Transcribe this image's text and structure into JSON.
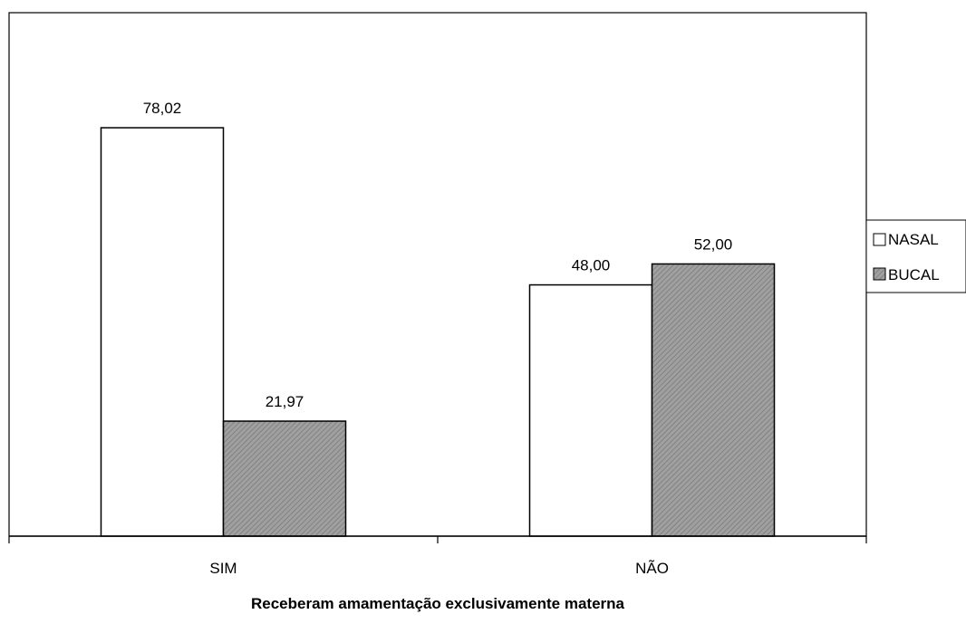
{
  "chart_data": {
    "type": "bar",
    "title": "",
    "xlabel": "Receberam amamentação exclusivamente materna",
    "ylabel": "",
    "categories": [
      "SIM",
      "NÃO"
    ],
    "series": [
      {
        "name": "NASAL",
        "values": [
          78.02,
          48.0
        ],
        "labels": [
          "78,02",
          "48,00"
        ],
        "fill": "#ffffff",
        "pattern": "none"
      },
      {
        "name": "BUCAL",
        "values": [
          21.97,
          52.0
        ],
        "labels": [
          "21,97",
          "52,00"
        ],
        "fill": "#999999",
        "pattern": "diagonal-hatch"
      }
    ],
    "ylim": [
      0,
      100
    ],
    "grid": false,
    "legend": "right",
    "colors": {
      "bar_stroke": "#000000",
      "hatch_base": "#a0a0a0",
      "hatch_line": "#7a7a7a",
      "axis": "#000000"
    }
  }
}
